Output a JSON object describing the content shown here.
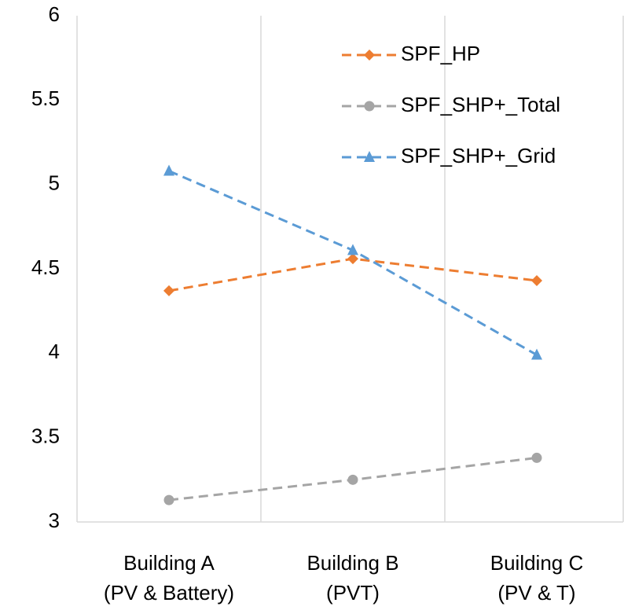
{
  "chart_data": {
    "type": "line",
    "categories": [
      [
        "Building A",
        "(PV & Battery)"
      ],
      [
        "Building B",
        "(PVT)"
      ],
      [
        "Building C",
        "(PV & T)"
      ]
    ],
    "series": [
      {
        "name": "SPF_HP",
        "color": "#ed7d31",
        "marker": "diamond",
        "values": [
          4.37,
          4.56,
          4.43
        ]
      },
      {
        "name": "SPF_SHP+_Total",
        "color": "#a5a5a5",
        "marker": "circle",
        "values": [
          3.13,
          3.25,
          3.38
        ]
      },
      {
        "name": "SPF_SHP+_Grid",
        "color": "#5b9bd5",
        "marker": "triangle",
        "values": [
          5.08,
          4.61,
          3.99
        ]
      }
    ],
    "ylim": [
      3,
      6
    ],
    "yticks": [
      3,
      3.5,
      4,
      4.5,
      5,
      5.5,
      6
    ],
    "grid": "x",
    "legend": "top-right",
    "line_style": "dashed"
  }
}
